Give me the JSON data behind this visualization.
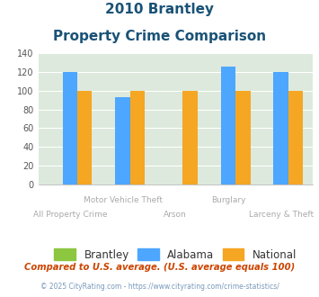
{
  "title_line1": "2010 Brantley",
  "title_line2": "Property Crime Comparison",
  "categories": [
    "All Property Crime",
    "Motor Vehicle Theft",
    "Arson",
    "Burglary",
    "Larceny & Theft"
  ],
  "brantley": [
    0,
    0,
    0,
    0,
    0
  ],
  "alabama": [
    120,
    93,
    0,
    126,
    120
  ],
  "national": [
    100,
    100,
    100,
    100,
    100
  ],
  "color_brantley": "#8dc63f",
  "color_alabama": "#4da6ff",
  "color_national": "#f5a623",
  "ylim": [
    0,
    140
  ],
  "yticks": [
    0,
    20,
    40,
    60,
    80,
    100,
    120,
    140
  ],
  "bg_color": "#dce9dc",
  "title_color": "#1a5276",
  "legend_labels": [
    "Brantley",
    "Alabama",
    "National"
  ],
  "footnote1": "Compared to U.S. average. (U.S. average equals 100)",
  "footnote2": "© 2025 CityRating.com - https://www.cityrating.com/crime-statistics/",
  "bar_width": 0.28,
  "upper_labels": {
    "1": "Motor Vehicle Theft",
    "3": "Burglary"
  },
  "lower_labels": {
    "0": "All Property Crime",
    "2": "Arson",
    "4": "Larceny & Theft"
  }
}
